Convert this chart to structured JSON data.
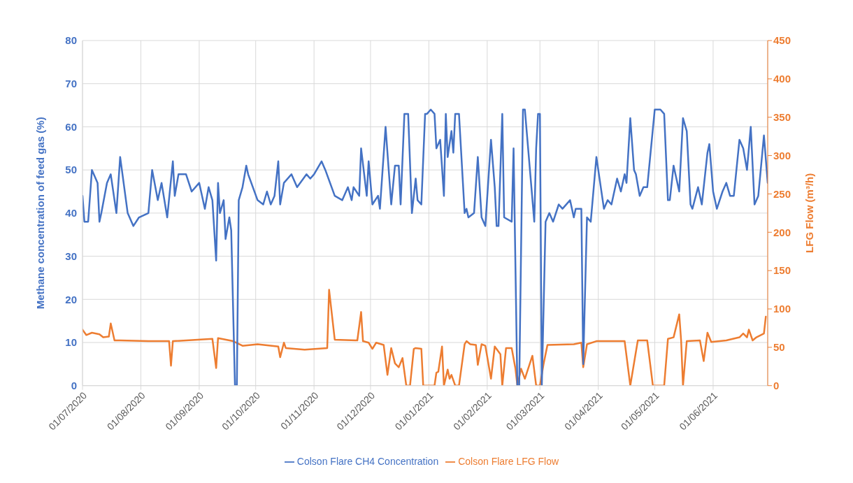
{
  "chart_data": {
    "type": "line",
    "ylabel": "Methane concentration of feed gas (%)",
    "y2label": "LFG Flow (m³/h)",
    "xlim": [
      "2020-07-01",
      "2021-06-30"
    ],
    "xticks": [
      {
        "value": "2020-07-01",
        "label": "01/07/2020"
      },
      {
        "value": "2020-08-01",
        "label": "01/08/2020"
      },
      {
        "value": "2020-09-01",
        "label": "01/09/2020"
      },
      {
        "value": "2020-10-01",
        "label": "01/10/2020"
      },
      {
        "value": "2020-11-01",
        "label": "01/11/2020"
      },
      {
        "value": "2020-12-01",
        "label": "01/12/2020"
      },
      {
        "value": "2021-01-01",
        "label": "01/01/2021"
      },
      {
        "value": "2021-02-01",
        "label": "01/02/2021"
      },
      {
        "value": "2021-03-01",
        "label": "01/03/2021"
      },
      {
        "value": "2021-04-01",
        "label": "01/04/2021"
      },
      {
        "value": "2021-05-01",
        "label": "01/05/2021"
      },
      {
        "value": "2021-06-01",
        "label": "01/06/2021"
      }
    ],
    "ylim": [
      0,
      80
    ],
    "yticks": [
      0,
      10,
      20,
      30,
      40,
      50,
      60,
      70,
      80
    ],
    "y2lim": [
      0,
      450
    ],
    "y2ticks": [
      0,
      50,
      100,
      150,
      200,
      250,
      300,
      350,
      400,
      450
    ],
    "grid": true,
    "legend": "bottom",
    "marker": "none",
    "line_style": "solid",
    "series": [
      {
        "name": "Colson Flare LFG Flow",
        "color": "#ed7d31",
        "axis": "y2",
        "x": [
          "2020-07-01",
          "2020-07-03",
          "2020-07-06",
          "2020-07-10",
          "2020-07-12",
          "2020-07-15",
          "2020-07-16",
          "2020-07-18",
          "2020-07-21",
          "2020-08-05",
          "2020-08-16",
          "2020-08-17",
          "2020-08-18",
          "2020-09-08",
          "2020-09-10",
          "2020-09-11",
          "2020-09-19",
          "2020-09-24",
          "2020-10-02",
          "2020-10-13",
          "2020-10-14",
          "2020-10-16",
          "2020-10-17",
          "2020-10-27",
          "2020-11-08",
          "2020-11-09",
          "2020-11-12",
          "2020-11-24",
          "2020-11-26",
          "2020-11-27",
          "2020-11-30",
          "2020-12-02",
          "2020-12-04",
          "2020-12-08",
          "2020-12-10",
          "2020-12-12",
          "2020-12-14",
          "2020-12-16",
          "2020-12-18",
          "2020-12-20",
          "2020-12-22",
          "2020-12-24",
          "2020-12-25",
          "2020-12-28",
          "2020-12-29",
          "2021-01-04",
          "2021-01-05",
          "2021-01-06",
          "2021-01-08",
          "2021-01-09",
          "2021-01-11",
          "2021-01-12",
          "2021-01-13",
          "2021-01-15",
          "2021-01-17",
          "2021-01-20",
          "2021-01-21",
          "2021-01-23",
          "2021-01-26",
          "2021-01-27",
          "2021-01-29",
          "2021-01-31",
          "2021-02-03",
          "2021-02-05",
          "2021-02-08",
          "2021-02-09",
          "2021-02-11",
          "2021-02-14",
          "2021-02-16",
          "2021-02-17",
          "2021-02-19",
          "2021-02-21",
          "2021-02-25",
          "2021-02-27",
          "2021-03-01",
          "2021-03-03",
          "2021-03-05",
          "2021-03-19",
          "2021-03-23",
          "2021-03-24",
          "2021-03-26",
          "2021-03-31",
          "2021-04-15",
          "2021-04-18",
          "2021-04-22",
          "2021-04-27",
          "2021-04-30",
          "2021-05-06",
          "2021-05-08",
          "2021-05-11",
          "2021-05-14",
          "2021-05-15",
          "2021-05-16",
          "2021-05-18",
          "2021-05-25",
          "2021-05-27",
          "2021-05-29",
          "2021-05-31",
          "2021-06-08",
          "2021-06-15",
          "2021-06-17",
          "2021-06-19",
          "2021-06-20",
          "2021-06-22",
          "2021-06-24",
          "2021-06-28",
          "2021-06-29"
        ],
        "values": [
          73,
          66,
          69,
          67,
          63,
          64,
          81,
          59,
          59,
          58,
          58,
          26,
          58,
          61,
          23,
          62,
          58,
          52,
          54,
          51,
          37,
          56,
          49,
          47,
          49,
          125,
          60,
          59,
          96,
          58,
          56,
          48,
          56,
          53,
          14,
          49,
          29,
          24,
          36,
          0,
          0,
          48,
          49,
          48,
          0,
          0,
          17,
          18,
          51,
          0,
          21,
          9,
          14,
          0,
          0,
          54,
          58,
          54,
          53,
          27,
          54,
          52,
          9,
          51,
          41,
          0,
          49,
          49,
          22,
          0,
          22,
          9,
          39,
          0,
          0,
          29,
          53,
          54,
          56,
          24,
          54,
          58,
          58,
          0,
          59,
          59,
          0,
          0,
          61,
          63,
          93,
          59,
          0,
          58,
          59,
          32,
          69,
          57,
          59,
          63,
          68,
          63,
          73,
          59,
          63,
          68,
          90
        ]
      },
      {
        "name": "Colson Flare CH4 Concentration",
        "color": "#4472c4",
        "x": [
          "2020-07-01",
          "2020-07-02",
          "2020-07-04",
          "2020-07-06",
          "2020-07-09",
          "2020-07-10",
          "2020-07-11",
          "2020-07-14",
          "2020-07-16",
          "2020-07-19",
          "2020-07-21",
          "2020-07-25",
          "2020-07-28",
          "2020-07-31",
          "2020-08-05",
          "2020-08-07",
          "2020-08-10",
          "2020-08-12",
          "2020-08-15",
          "2020-08-18",
          "2020-08-19",
          "2020-08-21",
          "2020-08-25",
          "2020-08-28",
          "2020-09-01",
          "2020-09-04",
          "2020-09-06",
          "2020-09-08",
          "2020-09-10",
          "2020-09-11",
          "2020-09-12",
          "2020-09-14",
          "2020-09-15",
          "2020-09-17",
          "2020-09-18",
          "2020-09-20",
          "2020-09-21",
          "2020-09-22",
          "2020-09-24",
          "2020-09-26",
          "2020-09-27",
          "2020-10-02",
          "2020-10-05",
          "2020-10-07",
          "2020-10-09",
          "2020-10-11",
          "2020-10-13",
          "2020-10-14",
          "2020-10-16",
          "2020-10-20",
          "2020-10-23",
          "2020-10-28",
          "2020-10-30",
          "2020-11-01",
          "2020-11-05",
          "2020-11-07",
          "2020-11-12",
          "2020-11-16",
          "2020-11-19",
          "2020-11-21",
          "2020-11-22",
          "2020-11-25",
          "2020-11-26",
          "2020-11-29",
          "2020-11-30",
          "2020-12-02",
          "2020-12-05",
          "2020-12-06",
          "2020-12-09",
          "2020-12-12",
          "2020-12-14",
          "2020-12-16",
          "2020-12-17",
          "2020-12-19",
          "2020-12-21",
          "2020-12-23",
          "2020-12-25",
          "2020-12-26",
          "2020-12-28",
          "2020-12-30",
          "2020-12-31",
          "2021-01-02",
          "2021-01-04",
          "2021-01-05",
          "2021-01-07",
          "2021-01-09",
          "2021-01-10",
          "2021-01-11",
          "2021-01-13",
          "2021-01-14",
          "2021-01-15",
          "2021-01-17",
          "2021-01-20",
          "2021-01-21",
          "2021-01-22",
          "2021-01-25",
          "2021-01-27",
          "2021-01-29",
          "2021-01-31",
          "2021-02-03",
          "2021-02-05",
          "2021-02-06",
          "2021-02-07",
          "2021-02-09",
          "2021-02-10",
          "2021-02-14",
          "2021-02-15",
          "2021-02-17",
          "2021-02-18",
          "2021-02-20",
          "2021-02-21",
          "2021-02-26",
          "2021-02-27",
          "2021-02-28",
          "2021-03-01",
          "2021-03-02",
          "2021-03-04",
          "2021-03-06",
          "2021-03-08",
          "2021-03-11",
          "2021-03-13",
          "2021-03-17",
          "2021-03-19",
          "2021-03-20",
          "2021-03-23",
          "2021-03-24",
          "2021-03-26",
          "2021-03-28",
          "2021-03-31",
          "2021-04-04",
          "2021-04-06",
          "2021-04-08",
          "2021-04-11",
          "2021-04-13",
          "2021-04-15",
          "2021-04-16",
          "2021-04-18",
          "2021-04-20",
          "2021-04-21",
          "2021-04-23",
          "2021-04-25",
          "2021-04-27",
          "2021-05-01",
          "2021-05-04",
          "2021-05-06",
          "2021-05-08",
          "2021-05-09",
          "2021-05-11",
          "2021-05-14",
          "2021-05-16",
          "2021-05-18",
          "2021-05-20",
          "2021-05-21",
          "2021-05-24",
          "2021-05-26",
          "2021-05-29",
          "2021-05-30",
          "2021-06-01",
          "2021-06-03",
          "2021-06-06",
          "2021-06-08",
          "2021-06-10",
          "2021-06-12",
          "2021-06-15",
          "2021-06-17",
          "2021-06-19",
          "2021-06-21",
          "2021-06-23",
          "2021-06-25",
          "2021-06-28",
          "2021-06-30"
        ],
        "values": [
          44,
          38,
          38,
          50,
          47,
          38,
          40,
          47,
          49,
          40,
          53,
          40,
          37,
          39,
          40,
          50,
          43,
          47,
          39,
          52,
          44,
          49,
          49,
          45,
          47,
          41,
          46,
          43,
          29,
          47,
          40,
          43,
          34,
          39,
          36,
          0,
          0,
          43,
          46,
          51,
          49,
          43,
          42,
          45,
          42,
          44,
          52,
          42,
          47,
          49,
          46,
          49,
          48,
          49,
          52,
          50,
          44,
          43,
          46,
          43,
          46,
          44,
          55,
          44,
          52,
          42,
          44,
          41,
          60,
          42,
          51,
          51,
          42,
          63,
          63,
          40,
          48,
          43,
          42,
          63,
          63,
          64,
          63,
          55,
          57,
          44,
          63,
          53,
          59,
          54,
          63,
          63,
          40,
          41,
          39,
          40,
          53,
          39,
          37,
          57,
          46,
          37,
          37,
          63,
          39,
          38,
          55,
          0,
          0,
          64,
          64,
          38,
          55,
          63,
          63,
          0,
          38,
          40,
          38,
          42,
          41,
          43,
          39,
          41,
          41,
          5,
          39,
          38,
          53,
          41,
          43,
          42,
          48,
          45,
          49,
          47,
          62,
          50,
          49,
          44,
          46,
          46,
          64,
          64,
          63,
          43,
          43,
          51,
          45,
          62,
          59,
          42,
          41,
          46,
          42,
          54,
          56,
          45,
          41,
          45,
          47,
          44,
          44,
          57,
          55,
          50,
          60,
          42,
          44,
          58,
          47
        ]
      }
    ]
  }
}
